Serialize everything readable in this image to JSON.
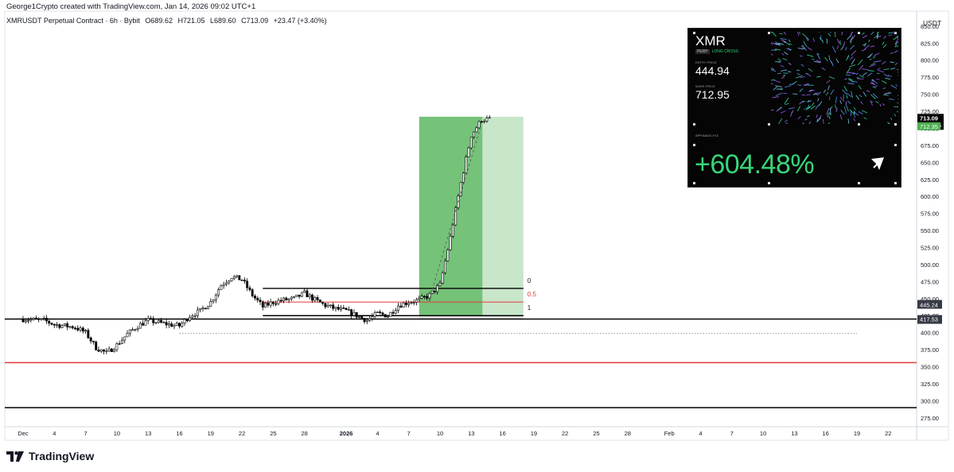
{
  "header": {
    "credit": "George1Crypto created with TradingView.com, Jan 14, 2026 09:02 UTC+1"
  },
  "symbol_bar": {
    "symbol": "XMRUSDT Perpetual Contract · 6h · Bybit",
    "open": "O689.62",
    "high": "H721.05",
    "low": "L689.60",
    "close": "C713.09",
    "change": "+23.47 (+3.40%)"
  },
  "price_axis": {
    "unit": "USDT",
    "ticks": [
      "850.00",
      "825.00",
      "800.00",
      "775.00",
      "750.00",
      "725.00",
      "700.00",
      "675.00",
      "650.00",
      "625.00",
      "600.00",
      "575.00",
      "550.00",
      "525.00",
      "500.00",
      "475.00",
      "450.00",
      "425.00",
      "400.00",
      "375.00",
      "350.00",
      "325.00",
      "300.00",
      "275.00"
    ],
    "labels": {
      "last_price": "713.09",
      "countdown": "03:57:15",
      "position_price": "712.35",
      "level_upper": "445.24",
      "level_lower": "417.53"
    }
  },
  "time_axis": {
    "ticks": [
      "Dec",
      "4",
      "7",
      "10",
      "13",
      "16",
      "19",
      "22",
      "25",
      "28",
      "2026",
      "4",
      "7",
      "10",
      "13",
      "16",
      "19",
      "22",
      "25",
      "28",
      "Feb",
      "4",
      "7",
      "10",
      "13",
      "16",
      "19",
      "22"
    ]
  },
  "fib": {
    "labels": [
      "0",
      "0.5",
      "1"
    ]
  },
  "card": {
    "ticker": "XMR",
    "badge": "PERP",
    "sub": "LONG CROSS",
    "entry_label": "ENTRY PRICE",
    "entry_price": "444.94",
    "mark_label": "MARK PRICE",
    "mark_price": "712.95",
    "app": "APP.NADO.XYZ",
    "pct": "+604.48%"
  },
  "footer": {
    "brand": "TradingView"
  },
  "colors": {
    "up": "#ffffff",
    "candle_outline": "#000000",
    "support_red": "#e53935",
    "profit_zone": "#66bb6a",
    "profit_zone_light": "#c8e6c9",
    "card_green": "#37d67a",
    "position_label": "#4caf50"
  },
  "chart_data": {
    "type": "candlestick",
    "symbol": "XMRUSDT",
    "interval": "6h",
    "ylim": [
      262,
      872
    ],
    "x_start": "Dec 1",
    "price_path": [
      [
        "Dec 1",
        420
      ],
      [
        "Dec 3",
        418
      ],
      [
        "Dec 4",
        412
      ],
      [
        "Dec 6",
        408
      ],
      [
        "Dec 7",
        400
      ],
      [
        "Dec 8",
        378
      ],
      [
        "Dec 9",
        370
      ],
      [
        "Dec 10",
        382
      ],
      [
        "Dec 11",
        398
      ],
      [
        "Dec 12",
        410
      ],
      [
        "Dec 13",
        418
      ],
      [
        "Dec 15",
        412
      ],
      [
        "Dec 16",
        410
      ],
      [
        "Dec 17",
        425
      ],
      [
        "Dec 18",
        432
      ],
      [
        "Dec 19",
        445
      ],
      [
        "Dec 20",
        470
      ],
      [
        "Dec 21",
        482
      ],
      [
        "Dec 22",
        478
      ],
      [
        "Dec 23",
        455
      ],
      [
        "Dec 24",
        438
      ],
      [
        "Dec 25",
        445
      ],
      [
        "Dec 26",
        448
      ],
      [
        "Dec 27",
        450
      ],
      [
        "Dec 28",
        458
      ],
      [
        "Dec 29",
        448
      ],
      [
        "Dec 30",
        440
      ],
      [
        "Dec 31",
        435
      ],
      [
        "Jan 1",
        432
      ],
      [
        "Jan 2",
        425
      ],
      [
        "Jan 3",
        418
      ],
      [
        "Jan 4",
        428
      ],
      [
        "Jan 5",
        425
      ],
      [
        "Jan 6",
        440
      ],
      [
        "Jan 7",
        445
      ],
      [
        "Jan 8",
        448
      ],
      [
        "Jan 9",
        455
      ],
      [
        "Jan 10",
        470
      ],
      [
        "Jan 11",
        540
      ],
      [
        "Jan 12",
        620
      ],
      [
        "Jan 13",
        690
      ],
      [
        "Jan 14",
        713
      ]
    ],
    "horizontal_levels": [
      {
        "price": 420,
        "color": "black"
      },
      {
        "price": 356,
        "color": "red"
      },
      {
        "price": 290,
        "color": "black"
      }
    ],
    "fib_retracement": {
      "from": "Dec 24",
      "to": "Jan 18",
      "levels": [
        {
          "label": "0",
          "price": 465
        },
        {
          "label": "0.5",
          "price": 445
        },
        {
          "label": "1",
          "price": 425
        }
      ]
    },
    "long_position": {
      "from": "Jan 8",
      "to": "Jan 18",
      "entry": 425,
      "target": 717
    },
    "dotted_level": {
      "price": 399,
      "from": "Dec 16",
      "to": "Feb 19"
    }
  }
}
